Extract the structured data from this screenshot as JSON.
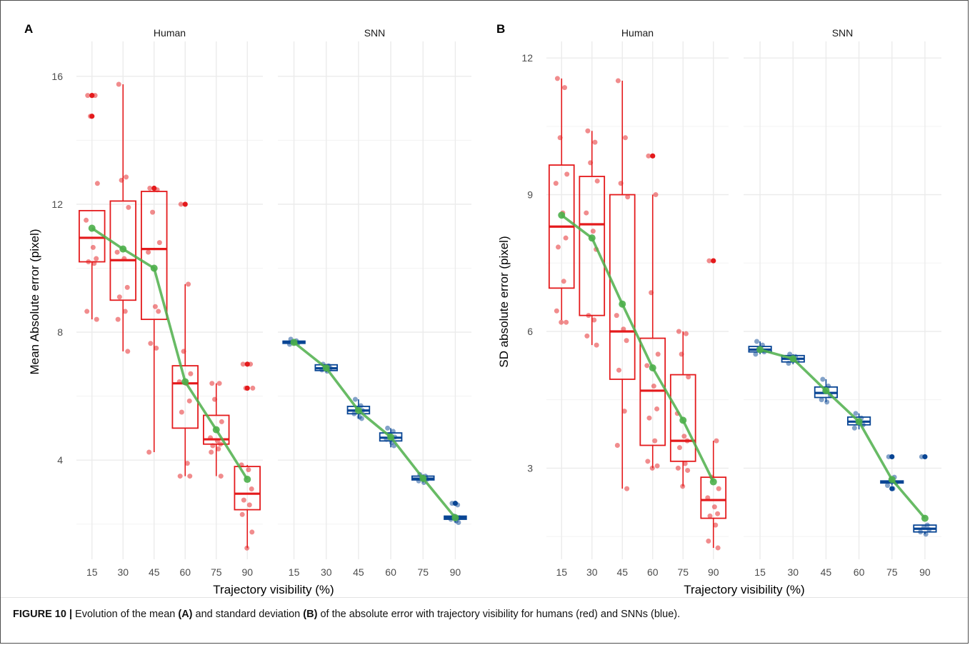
{
  "caption": {
    "label": "FIGURE 10 |",
    "part1": " Evolution of the mean ",
    "bold_a": "(A)",
    "part2": " and standard deviation ",
    "bold_b": "(B)",
    "part3": " of the absolute error with trajectory visibility for humans (red) and SNNs (blue)."
  },
  "colors": {
    "human": "#e41a1c",
    "snn": "#084594",
    "mean_line": "#4daf4a",
    "grid": "#ebebeb",
    "text": "#4d4d4d"
  },
  "chart_data": [
    {
      "panel": "A",
      "type": "box+line",
      "ylabel": "Mean Absolute error (pixel)",
      "xlabel": "Trajectory visibility (%)",
      "facets": [
        "Human",
        "SNN"
      ],
      "categories": [
        "15",
        "30",
        "45",
        "60",
        "75",
        "90"
      ],
      "ylim": [
        0.9,
        17.0
      ],
      "yticks": [
        4,
        8,
        12,
        16
      ],
      "grid": true,
      "boxes": {
        "Human": [
          {
            "q1": 10.2,
            "median": 10.95,
            "q3": 11.8,
            "low": 8.4,
            "high": 11.8,
            "outliers": [
              14.75,
              15.4
            ]
          },
          {
            "q1": 9.0,
            "median": 10.25,
            "q3": 12.1,
            "low": 7.4,
            "high": 15.75,
            "outliers": []
          },
          {
            "q1": 8.4,
            "median": 10.6,
            "q3": 12.4,
            "low": 4.25,
            "high": 12.45,
            "outliers": [
              12.5
            ]
          },
          {
            "q1": 5.0,
            "median": 6.4,
            "q3": 6.95,
            "low": 3.5,
            "high": 9.5,
            "outliers": [
              12.0
            ]
          },
          {
            "q1": 4.5,
            "median": 4.65,
            "q3": 5.4,
            "low": 3.5,
            "high": 6.4,
            "outliers": []
          },
          {
            "q1": 2.45,
            "median": 2.95,
            "q3": 3.8,
            "low": 1.25,
            "high": 3.85,
            "outliers": [
              6.25,
              7.0
            ]
          }
        ],
        "SNN": [
          {
            "q1": 7.65,
            "median": 7.7,
            "q3": 7.72,
            "low": 7.6,
            "high": 7.75,
            "outliers": []
          },
          {
            "q1": 6.8,
            "median": 6.87,
            "q3": 6.98,
            "low": 6.75,
            "high": 7.0,
            "outliers": []
          },
          {
            "q1": 5.45,
            "median": 5.55,
            "q3": 5.68,
            "low": 5.3,
            "high": 5.9,
            "outliers": []
          },
          {
            "q1": 4.6,
            "median": 4.7,
            "q3": 4.85,
            "low": 4.4,
            "high": 5.0,
            "outliers": []
          },
          {
            "q1": 3.38,
            "median": 3.42,
            "q3": 3.5,
            "low": 3.3,
            "high": 3.55,
            "outliers": []
          },
          {
            "q1": 2.15,
            "median": 2.2,
            "q3": 2.25,
            "low": 2.05,
            "high": 2.3,
            "outliers": [
              2.65
            ]
          }
        ]
      },
      "points": {
        "Human": [
          [
            15.4,
            15.4,
            14.75,
            12.65,
            11.5,
            10.65,
            10.3,
            10.2,
            10.15,
            8.65,
            8.4
          ],
          [
            15.75,
            12.85,
            12.75,
            11.9,
            10.5,
            10.3,
            9.4,
            9.1,
            8.65,
            8.4,
            7.4
          ],
          [
            12.5,
            12.45,
            11.75,
            10.8,
            10.5,
            8.8,
            8.65,
            7.65,
            7.5,
            4.25
          ],
          [
            12.0,
            9.5,
            7.4,
            6.7,
            6.45,
            6.4,
            5.85,
            5.5,
            3.9,
            3.5,
            3.5
          ],
          [
            6.4,
            6.4,
            5.9,
            5.2,
            4.7,
            4.6,
            4.5,
            4.45,
            4.35,
            4.25,
            3.5
          ],
          [
            7.0,
            7.0,
            6.25,
            6.25,
            3.85,
            3.7,
            3.1,
            2.75,
            2.6,
            2.3,
            1.75,
            1.25
          ]
        ],
        "SNN": [
          [
            7.78,
            7.73,
            7.7,
            7.66,
            7.62
          ],
          [
            7.0,
            6.95,
            6.92,
            6.88,
            6.82,
            6.78
          ],
          [
            5.9,
            5.7,
            5.6,
            5.55,
            5.45,
            5.35,
            5.3
          ],
          [
            5.0,
            4.9,
            4.8,
            4.72,
            4.65,
            4.55,
            4.45
          ],
          [
            3.55,
            3.5,
            3.45,
            3.4,
            3.35,
            3.3
          ],
          [
            2.65,
            2.6,
            2.25,
            2.2,
            2.15,
            2.1,
            2.05
          ]
        ]
      },
      "means": {
        "Human": [
          11.25,
          10.6,
          10.0,
          6.45,
          4.95,
          3.4
        ],
        "SNN": [
          7.68,
          6.88,
          5.55,
          4.72,
          3.43,
          2.2
        ]
      }
    },
    {
      "panel": "B",
      "type": "box+line",
      "ylabel": "SD absolute error (pixel)",
      "xlabel": "Trajectory visibility (%)",
      "facets": [
        "Human",
        "SNN"
      ],
      "categories": [
        "15",
        "30",
        "45",
        "60",
        "75",
        "90"
      ],
      "ylim": [
        1.0,
        12.3
      ],
      "yticks": [
        3,
        6,
        9,
        12
      ],
      "grid": true,
      "boxes": {
        "Human": [
          {
            "q1": 6.95,
            "median": 8.3,
            "q3": 9.65,
            "low": 6.25,
            "high": 11.55,
            "outliers": []
          },
          {
            "q1": 6.35,
            "median": 8.35,
            "q3": 9.4,
            "low": 5.7,
            "high": 10.4,
            "outliers": []
          },
          {
            "q1": 4.95,
            "median": 6.0,
            "q3": 9.0,
            "low": 2.55,
            "high": 11.5,
            "outliers": []
          },
          {
            "q1": 3.5,
            "median": 4.7,
            "q3": 5.85,
            "low": 3.0,
            "high": 9.0,
            "outliers": [
              9.85
            ]
          },
          {
            "q1": 3.15,
            "median": 3.6,
            "q3": 5.05,
            "low": 2.6,
            "high": 6.0,
            "outliers": []
          },
          {
            "q1": 1.9,
            "median": 2.3,
            "q3": 2.8,
            "low": 1.25,
            "high": 3.6,
            "outliers": [
              7.55
            ]
          }
        ],
        "SNN": [
          {
            "q1": 5.55,
            "median": 5.6,
            "q3": 5.67,
            "low": 5.5,
            "high": 5.78,
            "outliers": []
          },
          {
            "q1": 5.33,
            "median": 5.4,
            "q3": 5.47,
            "low": 5.28,
            "high": 5.5,
            "outliers": []
          },
          {
            "q1": 4.55,
            "median": 4.65,
            "q3": 4.78,
            "low": 4.45,
            "high": 4.95,
            "outliers": []
          },
          {
            "q1": 3.95,
            "median": 4.02,
            "q3": 4.12,
            "low": 3.85,
            "high": 4.2,
            "outliers": []
          },
          {
            "q1": 2.68,
            "median": 2.7,
            "q3": 2.72,
            "low": 2.62,
            "high": 2.78,
            "outliers": [
              2.55,
              3.25
            ]
          },
          {
            "q1": 1.6,
            "median": 1.67,
            "q3": 1.75,
            "low": 1.55,
            "high": 1.75,
            "outliers": [
              3.25
            ]
          }
        ]
      },
      "points": {
        "Human": [
          [
            11.55,
            11.35,
            10.25,
            9.45,
            9.25,
            8.6,
            8.05,
            7.85,
            7.1,
            6.45,
            6.2,
            6.2
          ],
          [
            10.4,
            10.15,
            9.7,
            9.3,
            8.6,
            8.2,
            7.8,
            6.35,
            6.25,
            5.9,
            5.7
          ],
          [
            11.5,
            10.25,
            9.25,
            8.95,
            6.35,
            6.05,
            5.8,
            5.15,
            4.25,
            3.5,
            2.55
          ],
          [
            9.85,
            9.0,
            6.85,
            5.5,
            5.25,
            4.8,
            4.3,
            4.1,
            3.6,
            3.15,
            3.05,
            3.0
          ],
          [
            6.0,
            5.95,
            5.5,
            5.0,
            4.2,
            3.7,
            3.6,
            3.45,
            3.1,
            3.0,
            2.95,
            2.6
          ],
          [
            7.55,
            3.6,
            2.8,
            2.55,
            2.35,
            2.15,
            2.0,
            1.95,
            1.75,
            1.4,
            1.25
          ]
        ],
        "SNN": [
          [
            5.78,
            5.7,
            5.62,
            5.55,
            5.5
          ],
          [
            5.5,
            5.45,
            5.4,
            5.35,
            5.3
          ],
          [
            4.95,
            4.8,
            4.7,
            4.6,
            4.5,
            4.45
          ],
          [
            4.2,
            4.1,
            4.0,
            3.95,
            3.88
          ],
          [
            3.25,
            2.8,
            2.72,
            2.68,
            2.62,
            2.55
          ],
          [
            3.25,
            1.75,
            1.7,
            1.65,
            1.6,
            1.55
          ]
        ]
      },
      "means": {
        "Human": [
          8.55,
          8.05,
          6.6,
          5.2,
          4.05,
          2.7
        ],
        "SNN": [
          5.6,
          5.4,
          4.7,
          4.02,
          2.75,
          1.9
        ]
      }
    }
  ]
}
